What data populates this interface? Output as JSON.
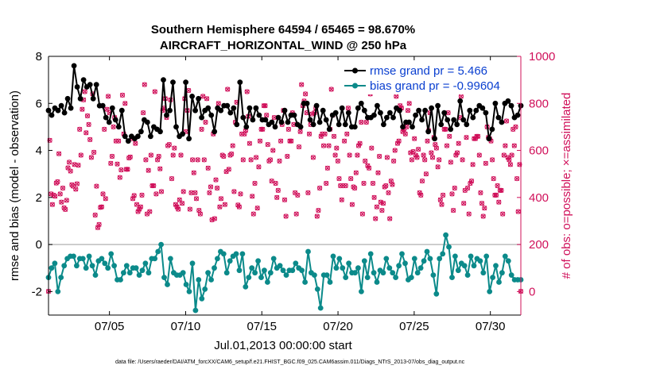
{
  "chart_data": {
    "type": "line",
    "title_line1": "Southern Hemisphere 64594 / 65465 = 98.670%",
    "title_line2": "AIRCRAFT_HORIZONTAL_WIND @ 250 hPa",
    "xlabel": "Jul.01,2013 00:00:00 start",
    "ylabel_left": "rmse and bias (model - observation)",
    "ylabel_right": "# of obs: o=possible; ×=assimilated",
    "footnote": "data file: /Users/raeder/DAI/ATM_forcXX/CAM6_setup/f.e21.FHIST_BGC.f09_025.CAM6assim.011/Diags_NTrS_2013-07/obs_diag_output.nc",
    "xlim": [
      1.0,
      32.0
    ],
    "ylim_left": [
      -3,
      8
    ],
    "ylim_right": [
      -100,
      1000
    ],
    "x_tick_values": [
      5,
      10,
      15,
      20,
      25,
      30
    ],
    "x_tick_labels": [
      "07/05",
      "07/10",
      "07/15",
      "07/20",
      "07/25",
      "07/30"
    ],
    "y_left_ticks": [
      "-2",
      "0",
      "2",
      "4",
      "6",
      "8"
    ],
    "y_right_ticks": [
      "0",
      "200",
      "400",
      "600",
      "800",
      "1000"
    ],
    "zero_line": 0,
    "legend": {
      "position": "top-right",
      "entries": [
        "rmse grand pr = 5.466",
        "bias grand pr = -0.99604"
      ]
    },
    "colors": {
      "rmse": "#000000",
      "bias": "#0b8a8a",
      "obs": "#d0105a",
      "zero_line": "#bdbdbd",
      "axis": "#000000",
      "right_axis": "#d0105a"
    },
    "series": [
      {
        "name": "rmse",
        "axis": "left",
        "values": [
          5.7,
          5.5,
          5.8,
          5.7,
          5.9,
          5.6,
          6.2,
          5.8,
          7.6,
          6.7,
          6.2,
          7.0,
          6.7,
          6.8,
          6.2,
          6.8,
          5.9,
          5.9,
          5.4,
          5.2,
          5.8,
          5.3,
          5.0,
          5.7,
          4.6,
          4.4,
          4.6,
          4.5,
          4.6,
          4.8,
          5.3,
          5.2,
          4.6,
          5.0,
          4.9,
          4.8,
          7.0,
          5.5,
          5.7,
          6.9,
          5.0,
          4.6,
          4.7,
          6.9,
          4.5,
          6.3,
          5.7,
          6.2,
          5.4,
          5.7,
          5.8,
          5.5,
          4.8,
          5.8,
          5.7,
          5.9,
          5.9,
          5.6,
          5.8,
          5.1,
          6.9,
          5.4,
          5.0,
          5.8,
          5.3,
          5.8,
          5.5,
          5.3,
          5.3,
          5.1,
          5.2,
          5.0,
          5.4,
          5.2,
          5.7,
          5.2,
          5.5,
          5.5,
          5.1,
          5.0,
          6.0,
          6.0,
          5.3,
          5.1,
          5.9,
          5.2,
          5.7,
          5.3,
          4.9,
          5.5,
          5.6,
          5.1,
          5.8,
          5.1,
          5.6,
          5.0,
          5.0,
          5.8,
          6.0,
          5.7,
          5.4,
          5.4,
          5.5,
          5.9,
          5.6,
          5.1,
          5.4,
          5.6,
          5.4,
          5.8,
          5.7,
          5.0,
          5.2,
          5.2,
          5.0,
          5.5,
          5.7,
          5.3,
          5.7,
          4.8,
          5.8,
          4.5,
          5.9,
          5.1,
          5.6,
          5.3,
          4.9,
          5.3,
          5.1,
          6.1,
          5.3,
          5.1,
          5.7,
          5.4,
          5.7,
          5.9,
          5.8,
          5.6,
          4.5,
          4.9,
          6.0,
          5.4,
          5.2,
          6.0,
          6.1,
          5.9,
          5.4,
          5.5,
          5.9
        ]
      },
      {
        "name": "bias",
        "axis": "left",
        "values": [
          -1.4,
          -1.0,
          -0.8,
          -2.0,
          -1.4,
          -0.9,
          -0.6,
          -0.5,
          -0.5,
          -0.9,
          -0.6,
          -0.6,
          -1.0,
          -0.5,
          -0.9,
          -1.3,
          -0.7,
          -0.6,
          -0.8,
          -1.0,
          -0.4,
          -0.9,
          -1.5,
          -1.5,
          -1.2,
          -0.9,
          -1.2,
          -1.0,
          -1.0,
          -1.3,
          -1.1,
          -0.8,
          -1.2,
          -0.6,
          -0.6,
          -0.3,
          0.0,
          -1.4,
          -1.7,
          -0.6,
          -1.2,
          -1.3,
          -1.3,
          -1.2,
          -1.7,
          -2.0,
          -0.8,
          -2.8,
          -1.5,
          -2.3,
          -1.9,
          -1.2,
          -1.5,
          -1.0,
          -0.6,
          -0.3,
          -0.4,
          -1.2,
          -0.7,
          -0.5,
          -0.4,
          -1.1,
          -0.4,
          -1.8,
          -1.4,
          -1.0,
          -1.2,
          -0.7,
          -1.4,
          -1.1,
          -1.6,
          -1.2,
          -0.6,
          -1.0,
          -0.9,
          -1.1,
          -1.3,
          -1.1,
          -1.1,
          -0.8,
          -1.0,
          -1.1,
          -1.6,
          -0.3,
          -1.2,
          -1.3,
          -1.9,
          -2.7,
          -1.3,
          -1.3,
          -1.6,
          -0.5,
          -1.0,
          -0.6,
          -1.0,
          -1.4,
          -0.8,
          -1.2,
          -1.2,
          -1.0,
          -2.0,
          -0.7,
          -1.4,
          -0.4,
          -1.2,
          -1.6,
          -1.1,
          -1.2,
          -0.6,
          -1.0,
          -1.2,
          -1.4,
          -0.9,
          -0.4,
          -0.8,
          -1.5,
          -1.4,
          -0.6,
          -1.2,
          -1.0,
          -0.7,
          -0.3,
          -0.6,
          -1.3,
          -2.1,
          -0.6,
          -0.4,
          0.4,
          -0.1,
          -1.4,
          -0.5,
          -1.1,
          -0.8,
          -0.9,
          -1.3,
          -0.5,
          -0.9,
          -0.6,
          -0.7,
          -1.2,
          -0.5,
          -2.0,
          -1.4,
          -0.9,
          -1.6,
          -1.2,
          -0.5,
          -0.7,
          -1.3,
          -1.5,
          -1.5,
          -1.5
        ]
      },
      {
        "name": "obs count",
        "axis": "right",
        "values": [
          1,
          643,
          415,
          370,
          410,
          405,
          461,
          467,
          586,
          415,
          380,
          440,
          356,
          349,
          388,
          526,
          550,
          512,
          454,
          448,
          540,
          435,
          458,
          537,
          690,
          580,
          775,
          815,
          850,
          675,
          747,
          710,
          646,
          570,
          840,
          592,
          325,
          448,
          272,
          285,
          358,
          360,
          415,
          690,
          395,
          775,
          830,
          760,
          545,
          575,
          700,
          740,
          640,
          542,
          640,
          485,
          517,
          835,
          670,
          800,
          520,
          520,
          568,
          572,
          650,
          395,
          408,
          630,
          370,
          340,
          350,
          360,
          410,
          760,
          880,
          560,
          330,
          515,
          340,
          580,
          450,
          450,
          850,
          415,
          560,
          575,
          522,
          425,
          770,
          780,
          820,
          740,
          620,
          625,
          815,
          480,
          580,
          610,
          370,
          360,
          350,
          390,
          580,
          375,
          425,
          820,
          680,
          770,
          855,
          350,
          420,
          560,
          505,
          420,
          395,
          560,
          345,
          330,
          690,
          830,
          560,
          720,
          820,
          525,
          420,
          445,
          305,
          670,
          310,
          475,
          440,
          800,
          360,
          395,
          580,
          575,
          370,
          510,
          860,
          520,
          580,
          585,
          620,
          425,
          720,
          805,
          368,
          360,
          415,
          670,
          560,
          670,
          685,
          850,
          745,
          630,
          560,
          405,
          330,
          460,
          570,
          355,
          530,
          640,
          690,
          690,
          790,
          790,
          750,
          625,
          555,
          560,
          470,
          600,
          740,
          460,
          400,
          430,
          555,
          640,
          710,
          770,
          390,
          320,
          575,
          690,
          640,
          640,
          760,
          710,
          420,
          330,
          410,
          615,
          680,
          880,
          790,
          810,
          840,
          760,
          420,
          670,
          710,
          755,
          570,
          760,
          780,
          320,
          345,
          440,
          660,
          670,
          620,
          670,
          460,
          525,
          620,
          690,
          860,
          750,
          660,
          580,
          610,
          555,
          480,
          450,
          390,
          450,
          640,
          450,
          670,
          780,
          580,
          480,
          370,
          445,
          440,
          505,
          580,
          620,
          630,
          720,
          330,
          460,
          555,
          720,
          535,
          525,
          840,
          610,
          460,
          400,
          310,
          360,
          505,
          575,
          380,
          345,
          375,
          445,
          450,
          570,
          420,
          310,
          470,
          455,
          555,
          600,
          830,
          630,
          640,
          790,
          780,
          680,
          690,
          670,
          700,
          770,
          800,
          590,
          560,
          595,
          650,
          580,
          570,
          605,
          420,
          410,
          470,
          580,
          560,
          500,
          640,
          685,
          760,
          590,
          570,
          655,
          625,
          610,
          530,
          560,
          390,
          370,
          410,
          690,
          690,
          620,
          760,
          660,
          550,
          415,
          345,
          440,
          580,
          590,
          630,
          740,
          830,
          560,
          375,
          430,
          655,
          440,
          330,
          460,
          470,
          540,
          650,
          650,
          660,
          660,
          580,
          420,
          375,
          320,
          355,
          545,
          700,
          655,
          650,
          640,
          560,
          480,
          410,
          410,
          450,
          380,
          430,
          430,
          330,
          580,
          620,
          725,
          570,
          560,
          540,
          580,
          690,
          620,
          700,
          480,
          340,
          540,
          1
        ]
      }
    ]
  }
}
